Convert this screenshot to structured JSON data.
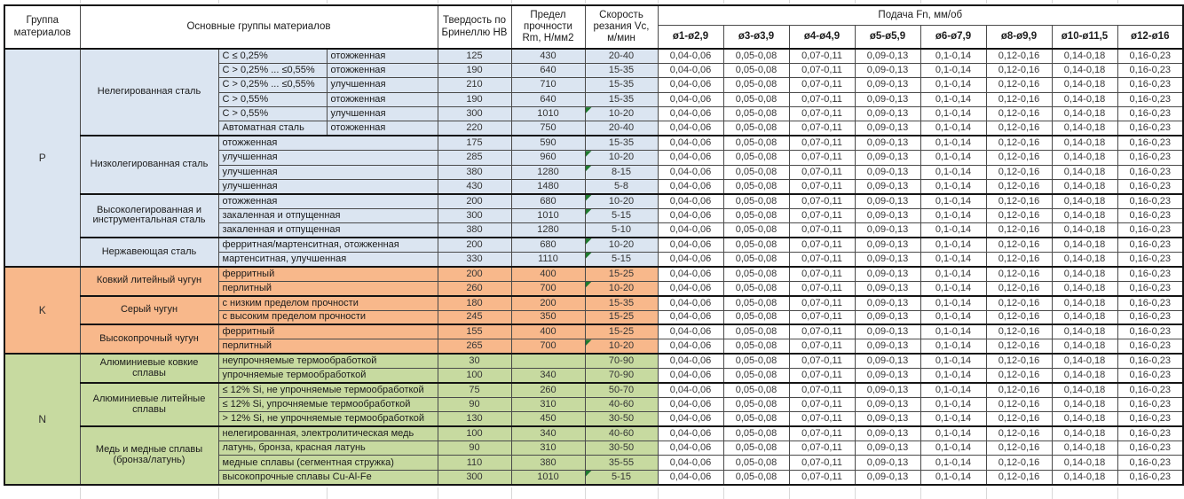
{
  "header": {
    "group_col": "Группа материалов",
    "main_groups_col": "Основные группы материалов",
    "hardness_col": "Твердость по Бринеллю HB",
    "strength_col": "Предел прочности Rm, Н/мм2",
    "speed_col": "Скорость резания Vc, м/мин",
    "feed_col": "Подача Fn, мм/об",
    "diameters": [
      "ø1-ø2,9",
      "ø3-ø3,9",
      "ø4-ø4,9",
      "ø5-ø5,9",
      "ø6-ø7,9",
      "ø8-ø9,9",
      "ø10-ø11,5",
      "ø12-ø16"
    ]
  },
  "colors": {
    "group_p": "#dbe5f1",
    "group_k": "#f8b88b",
    "group_n": "#c7daa0",
    "marker": "#1f7a2e"
  },
  "feed_values": [
    "0,04-0,06",
    "0,05-0,08",
    "0,07-0,11",
    "0,09-0,13",
    "0,1-0,14",
    "0,12-0,16",
    "0,14-0,18",
    "0,16-0,23"
  ],
  "groups": [
    {
      "letter": "P",
      "color_key": "group_p",
      "subgroups": [
        {
          "name": "Нелегированная сталь",
          "rows": [
            {
              "sub1": "C ≤ 0,25%",
              "sub2": "отожженная",
              "hb": "125",
              "rm": "430",
              "vc": "20-40",
              "m": false
            },
            {
              "sub1": "C > 0,25% ... ≤0,55%",
              "sub2": "отожженная",
              "hb": "190",
              "rm": "640",
              "vc": "15-35",
              "m": false
            },
            {
              "sub1": "C > 0,25% ... ≤0,55%",
              "sub2": "улучшенная",
              "hb": "210",
              "rm": "710",
              "vc": "15-35",
              "m": false
            },
            {
              "sub1": "C > 0,55%",
              "sub2": "отожженная",
              "hb": "190",
              "rm": "640",
              "vc": "15-35",
              "m": false
            },
            {
              "sub1": "C > 0,55%",
              "sub2": "улучшенная",
              "hb": "300",
              "rm": "1010",
              "vc": "10-20",
              "m": true
            },
            {
              "sub1": "Автоматная сталь",
              "sub2": "отожженная",
              "hb": "220",
              "rm": "750",
              "vc": "20-40",
              "m": false
            }
          ]
        },
        {
          "name": "Низколегированная сталь",
          "rows": [
            {
              "desc": "отожженная",
              "hb": "175",
              "rm": "590",
              "vc": "15-35",
              "m": false
            },
            {
              "desc": "улучшенная",
              "hb": "285",
              "rm": "960",
              "vc": "10-20",
              "m": true
            },
            {
              "desc": "улучшенная",
              "hb": "380",
              "rm": "1280",
              "vc": "8-15",
              "m": true
            },
            {
              "desc": "улучшенная",
              "hb": "430",
              "rm": "1480",
              "vc": "5-8",
              "m": false
            }
          ]
        },
        {
          "name": "Высоколегированная и инструментальная сталь",
          "rows": [
            {
              "desc": "отожженная",
              "hb": "200",
              "rm": "680",
              "vc": "10-20",
              "m": true
            },
            {
              "desc": "закаленная и отпущенная",
              "hb": "300",
              "rm": "1010",
              "vc": "5-15",
              "m": true
            },
            {
              "desc": "закаленная и отпущенная",
              "hb": "380",
              "rm": "1280",
              "vc": "5-10",
              "m": false
            }
          ]
        },
        {
          "name": "Нержавеющая сталь",
          "rows": [
            {
              "desc": "ферритная/мартенситная, отожженная",
              "hb": "200",
              "rm": "680",
              "vc": "10-20",
              "m": true
            },
            {
              "desc": "мартенситная, улучшенная",
              "hb": "330",
              "rm": "1110",
              "vc": "5-15",
              "m": true
            }
          ]
        }
      ]
    },
    {
      "letter": "K",
      "color_key": "group_k",
      "subgroups": [
        {
          "name": "Ковкий литейный чугун",
          "rows": [
            {
              "desc": "ферритный",
              "hb": "200",
              "rm": "400",
              "vc": "15-25",
              "m": false
            },
            {
              "desc": "перлитный",
              "hb": "260",
              "rm": "700",
              "vc": "10-20",
              "m": true
            }
          ]
        },
        {
          "name": "Серый чугун",
          "rows": [
            {
              "desc": "с низким пределом прочности",
              "hb": "180",
              "rm": "200",
              "vc": "15-35",
              "m": false
            },
            {
              "desc": "с высоким пределом прочности",
              "hb": "245",
              "rm": "350",
              "vc": "15-25",
              "m": false
            }
          ]
        },
        {
          "name": "Высокопрочный чугун",
          "rows": [
            {
              "desc": "ферритный",
              "hb": "155",
              "rm": "400",
              "vc": "15-25",
              "m": false
            },
            {
              "desc": "перлитный",
              "hb": "265",
              "rm": "700",
              "vc": "10-20",
              "m": true
            }
          ]
        }
      ]
    },
    {
      "letter": "N",
      "color_key": "group_n",
      "subgroups": [
        {
          "name": "Алюминиевые ковкие сплавы",
          "rows": [
            {
              "desc": "неупрочняемые термообработкой",
              "hb": "30",
              "rm": "",
              "vc": "70-90",
              "m": false
            },
            {
              "desc": "упрочняемые термообработкой",
              "hb": "100",
              "rm": "340",
              "vc": "70-90",
              "m": false
            }
          ]
        },
        {
          "name": "Алюминиевые литейные сплавы",
          "rows": [
            {
              "desc": "≤ 12% Si, не упрочняемые термообработкой",
              "hb": "75",
              "rm": "260",
              "vc": "50-70",
              "m": false
            },
            {
              "desc": "≤ 12% Si, упрочняемые термообработкой",
              "hb": "90",
              "rm": "310",
              "vc": "40-60",
              "m": false
            },
            {
              "desc": "> 12% Si, не упрочняемые термообработкой",
              "hb": "130",
              "rm": "450",
              "vc": "30-50",
              "m": false
            }
          ]
        },
        {
          "name": "Медь и медные сплавы (бронза/латунь)",
          "rows": [
            {
              "desc": "нелегированная, электролитическая медь",
              "hb": "100",
              "rm": "340",
              "vc": "40-60",
              "m": false
            },
            {
              "desc": "латунь, бронза, красная латунь",
              "hb": "90",
              "rm": "310",
              "vc": "30-50",
              "m": false
            },
            {
              "desc": "медные сплавы (сегментная стружка)",
              "hb": "110",
              "rm": "380",
              "vc": "35-55",
              "m": false
            },
            {
              "desc": "высокопрочные сплавы Cu-Al-Fe",
              "hb": "300",
              "rm": "1010",
              "vc": "5-15",
              "m": true
            }
          ]
        }
      ]
    }
  ]
}
